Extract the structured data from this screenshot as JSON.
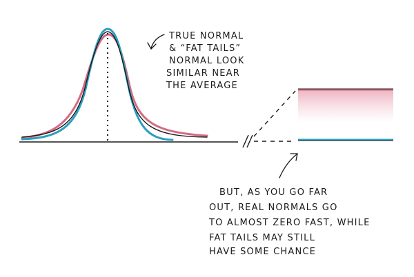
{
  "annotations": {
    "top": [
      "TRUE NORMAL",
      "& “FAT TAILS”",
      "NORMAL LOOK",
      "SIMILAR NEAR",
      "THE AVERAGE"
    ],
    "bottom": [
      "BUT, AS YOU GO FAR",
      "OUT, REAL NORMALS GO",
      "TO ALMOST ZERO FAST, WHILE",
      "FAT TAILS MAY STILL",
      "HAVE SOME CHANCE"
    ]
  }
}
